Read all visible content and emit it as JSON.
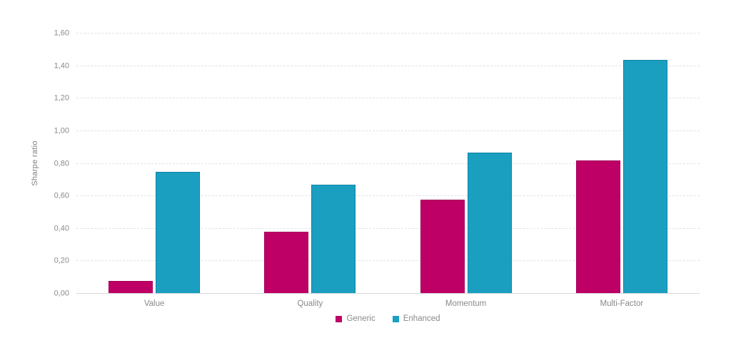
{
  "chart_data": {
    "type": "bar",
    "title": "",
    "xlabel": "",
    "ylabel": "Sharpe ratio",
    "categories": [
      "Value",
      "Quality",
      "Momentum",
      "Multi-Factor"
    ],
    "series": [
      {
        "name": "Generic",
        "color": "#be0066",
        "border_color": "#a30057",
        "values": [
          0.08,
          0.38,
          0.58,
          0.82
        ]
      },
      {
        "name": "Enhanced",
        "color": "#1a9fc0",
        "border_color": "#0f84a6",
        "values": [
          0.75,
          0.67,
          0.87,
          1.44
        ]
      }
    ],
    "ylim": [
      0,
      1.6
    ],
    "ytick_step": 0.2,
    "ytick_labels": [
      "0,00",
      "0,20",
      "0,40",
      "0,60",
      "0,80",
      "1,00",
      "1,20",
      "1,40",
      "1,60"
    ],
    "decimal_separator": ",",
    "grid": true,
    "gridline_color": "#dde4e8",
    "legend_position": "bottom-center",
    "background_color": "#ffffff"
  }
}
